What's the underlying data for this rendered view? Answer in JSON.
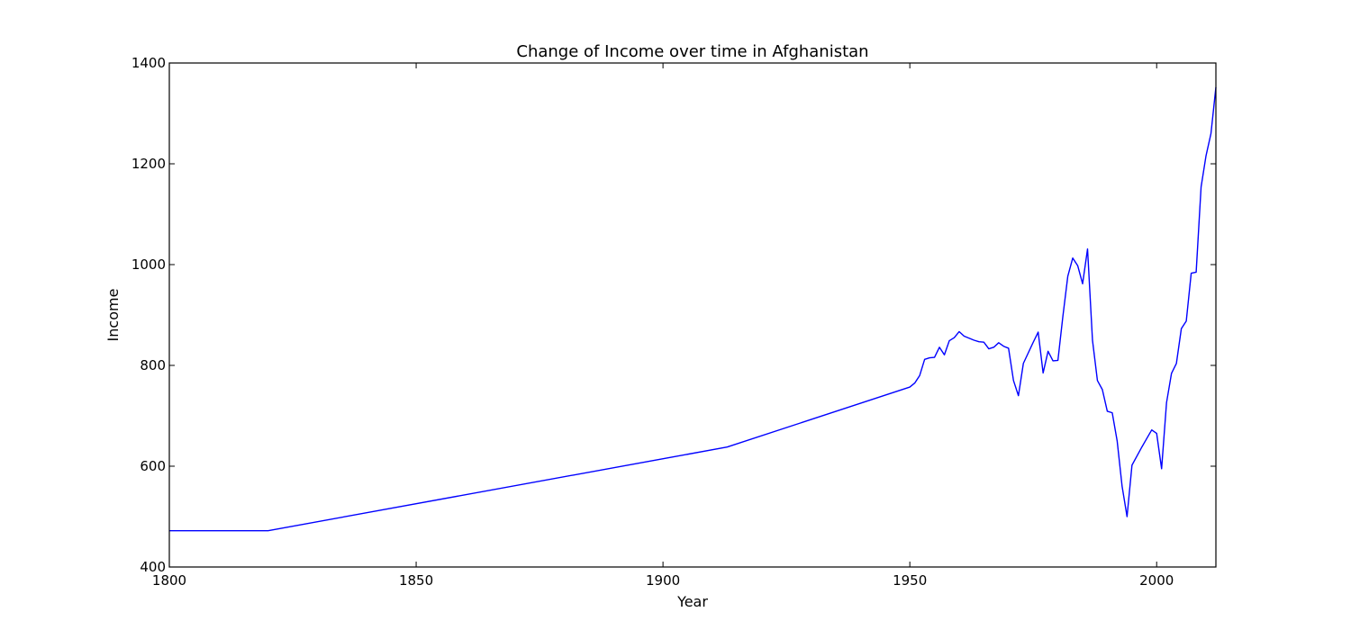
{
  "chart_data": {
    "type": "line",
    "title": "Change of Income over time in Afghanistan",
    "xlabel": "Year",
    "ylabel": "Income",
    "xlim": [
      1800,
      2012
    ],
    "ylim": [
      400,
      1400
    ],
    "xticks": [
      1800,
      1850,
      1900,
      1950,
      2000
    ],
    "yticks": [
      400,
      600,
      800,
      1000,
      1200,
      1400
    ],
    "grid": false,
    "line_color": "#0000ff",
    "series": [
      {
        "x": [
          1800,
          1820,
          1913,
          1950,
          1951,
          1952,
          1953,
          1954,
          1955,
          1956,
          1957,
          1958,
          1959,
          1960,
          1961,
          1962,
          1963,
          1964,
          1965,
          1966,
          1967,
          1968,
          1969,
          1970,
          1971,
          1972,
          1973,
          1974,
          1975,
          1976,
          1977,
          1978,
          1979,
          1980,
          1981,
          1982,
          1983,
          1984,
          1985,
          1986,
          1987,
          1988,
          1989,
          1990,
          1991,
          1992,
          1993,
          1994,
          1995,
          1996,
          1997,
          1998,
          1999,
          2000,
          2001,
          2002,
          2003,
          2004,
          2005,
          2006,
          2007,
          2008,
          2009,
          2010,
          2011,
          2012
        ],
        "values": [
          472,
          472,
          638,
          757,
          765,
          780,
          812,
          815,
          816,
          836,
          821,
          849,
          855,
          867,
          858,
          854,
          850,
          847,
          846,
          833,
          836,
          845,
          838,
          834,
          770,
          740,
          804,
          825,
          846,
          866,
          785,
          828,
          809,
          810,
          897,
          977,
          1013,
          998,
          962,
          1031,
          850,
          770,
          752,
          709,
          706,
          650,
          560,
          500,
          602,
          620,
          638,
          655,
          672,
          665,
          595,
          726,
          784,
          804,
          873,
          888,
          983,
          985,
          1154,
          1216,
          1260,
          1352
        ]
      }
    ]
  }
}
